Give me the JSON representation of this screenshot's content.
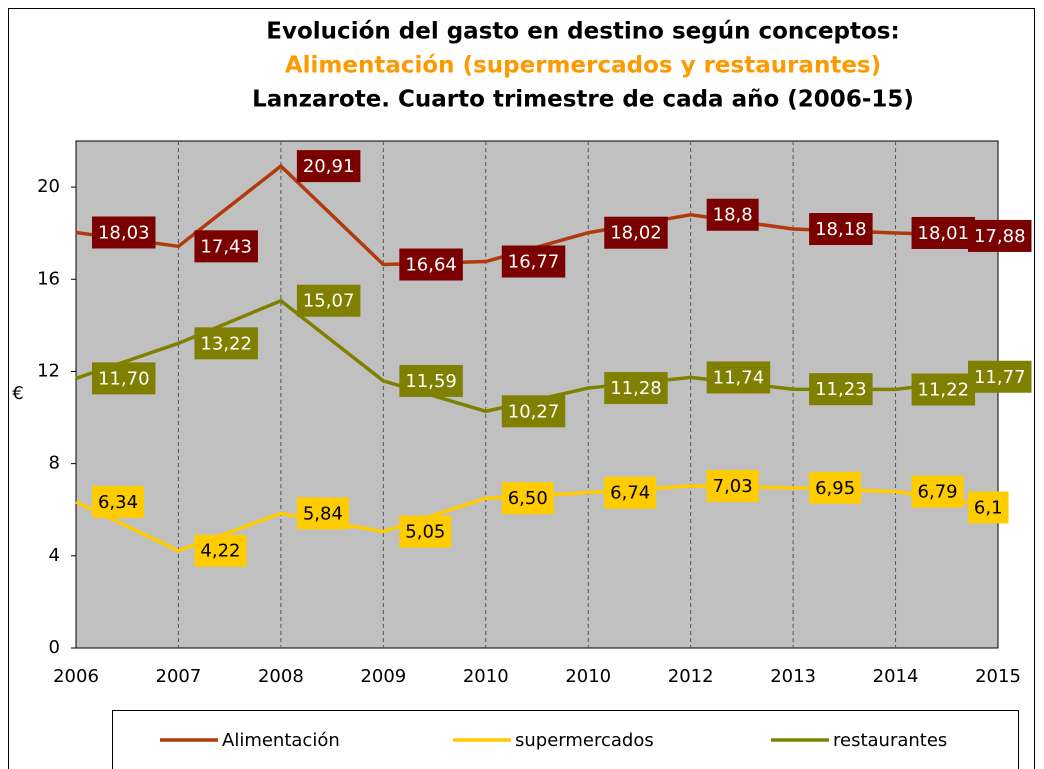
{
  "chart_data": {
    "type": "line",
    "title": "Evolución del gasto en destino según conceptos:",
    "subtitle": "Alimentación (supermercados y restaurantes)",
    "subtitle2": "Lanzarote. Cuarto trimestre de cada año (2006-15)",
    "y_label": "€",
    "categories": [
      "2006",
      "2007",
      "2008",
      "2009",
      "2010",
      "2010",
      "2012",
      "2013",
      "2014",
      "2015"
    ],
    "series": [
      {
        "name": "Alimentación",
        "color": "#b03a0e",
        "label_color": "#7b0000",
        "label_text_color": "#ffffff",
        "values": [
          18.03,
          17.43,
          20.91,
          16.64,
          16.77,
          18.02,
          18.8,
          18.18,
          18.01,
          17.88
        ],
        "value_labels": [
          "18,03",
          "17,43",
          "20,91",
          "16,64",
          "16,77",
          "18,02",
          "18,8",
          "18,18",
          "18,01",
          "17,88"
        ]
      },
      {
        "name": "supermercados",
        "color": "#ffcc00",
        "label_color": "#ffcc00",
        "label_text_color": "#000000",
        "values": [
          6.34,
          4.22,
          5.84,
          5.05,
          6.5,
          6.74,
          7.03,
          6.95,
          6.79,
          6.1
        ],
        "value_labels": [
          "6,34",
          "4,22",
          "5,84",
          "5,05",
          "6,50",
          "6,74",
          "7,03",
          "6,95",
          "6,79",
          "6,1"
        ]
      },
      {
        "name": "restaurantes",
        "color": "#808000",
        "label_color": "#808000",
        "label_text_color": "#ffffff",
        "values": [
          11.7,
          13.22,
          15.07,
          11.59,
          10.27,
          11.28,
          11.74,
          11.23,
          11.22,
          11.77
        ],
        "value_labels": [
          "11,70",
          "13,22",
          "15,07",
          "11,59",
          "10,27",
          "11,28",
          "11,74",
          "11,23",
          "11,22",
          "11,77"
        ]
      }
    ],
    "ylim": [
      0,
      22
    ],
    "yticks": [
      0,
      4,
      8,
      12,
      16,
      20
    ],
    "grid": true
  }
}
